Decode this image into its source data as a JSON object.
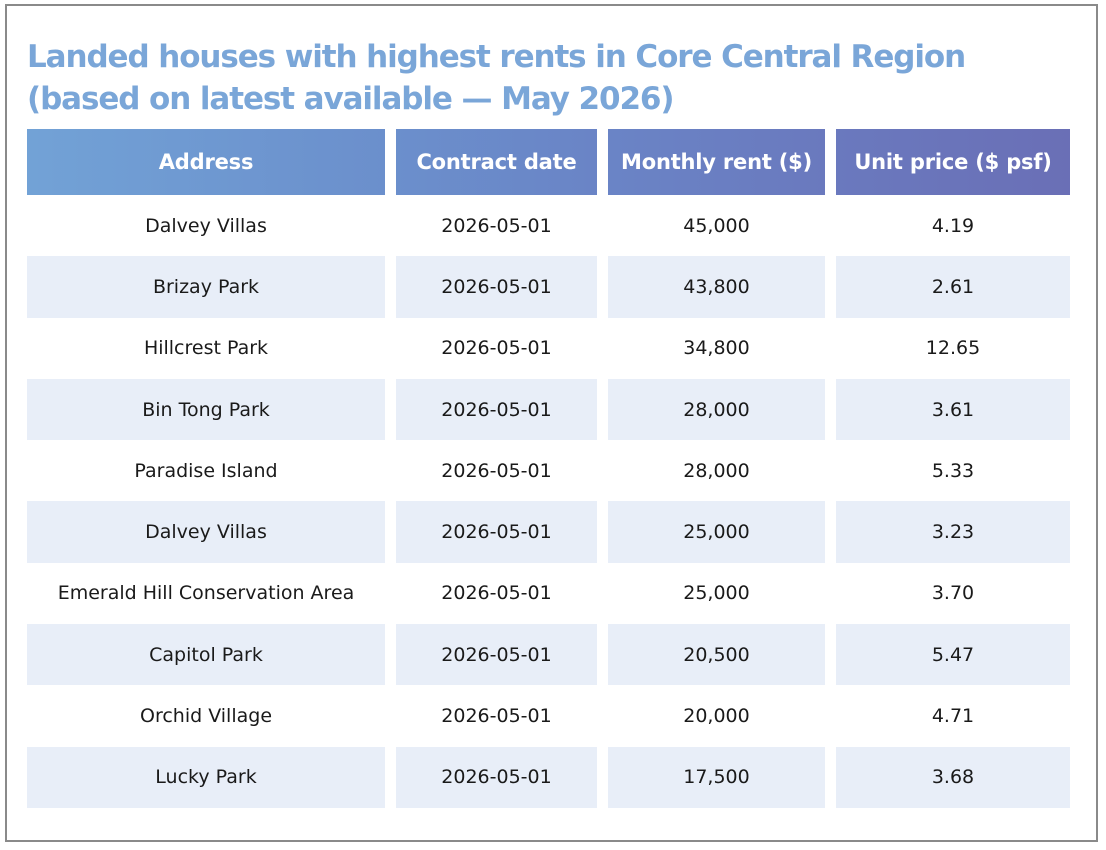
{
  "title": {
    "line1": "Landed houses with highest rents in Core Central Region",
    "line2": "(based on latest available — May 2026)"
  },
  "colors": {
    "title": "#7aa6d8",
    "header_start": "#72a2d6",
    "header_end": "#6a6fb6",
    "row_alt": "#e8eef8",
    "border": "#8a8a8a"
  },
  "table": {
    "headers": [
      "Address",
      "Contract date",
      "Monthly rent ($)",
      "Unit price ($ psf)"
    ],
    "rows": [
      [
        "Dalvey Villas",
        "2026-05-01",
        "45,000",
        "4.19"
      ],
      [
        "Brizay Park",
        "2026-05-01",
        "43,800",
        "2.61"
      ],
      [
        "Hillcrest Park",
        "2026-05-01",
        "34,800",
        "12.65"
      ],
      [
        "Bin Tong Park",
        "2026-05-01",
        "28,000",
        "3.61"
      ],
      [
        "Paradise Island",
        "2026-05-01",
        "28,000",
        "5.33"
      ],
      [
        "Dalvey Villas",
        "2026-05-01",
        "25,000",
        "3.23"
      ],
      [
        "Emerald Hill Conservation Area",
        "2026-05-01",
        "25,000",
        "3.70"
      ],
      [
        "Capitol Park",
        "2026-05-01",
        "20,500",
        "5.47"
      ],
      [
        "Orchid Village",
        "2026-05-01",
        "20,000",
        "4.71"
      ],
      [
        "Lucky Park",
        "2026-05-01",
        "17,500",
        "3.68"
      ]
    ]
  }
}
